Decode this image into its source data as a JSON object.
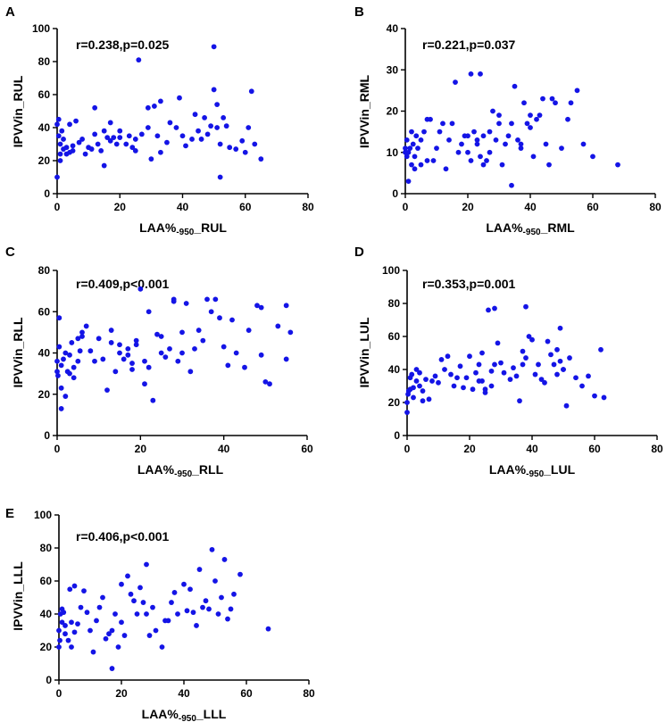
{
  "chart_data": [
    {
      "panel": "A",
      "type": "scatter",
      "xlabel_main": "LAA%",
      "xlabel_sub": "-950",
      "xlabel_suffix": "_RUL",
      "ylabel": "IPVVin_RUL",
      "annotation": "r=0.238,p=0.025",
      "xlim": [
        0,
        80
      ],
      "ylim": [
        0,
        100
      ],
      "xticks": [
        0,
        20,
        40,
        60,
        80
      ],
      "yticks": [
        0,
        20,
        40,
        60,
        80,
        100
      ],
      "x": [
        0,
        0,
        0.5,
        0.5,
        1,
        1,
        1,
        1.5,
        2,
        2,
        3,
        3,
        4,
        4,
        5,
        5,
        6,
        7,
        8,
        9,
        10,
        11,
        12,
        12,
        13,
        14,
        15,
        15,
        16,
        17,
        17,
        18,
        19,
        20,
        20,
        22,
        23,
        24,
        25,
        25,
        26,
        27,
        29,
        29,
        30,
        31,
        32,
        33,
        33,
        35,
        36,
        38,
        39,
        40,
        41,
        43,
        44,
        45,
        46,
        47,
        48,
        49,
        50,
        50,
        51,
        51,
        52,
        52,
        53,
        54,
        55,
        57,
        59,
        60,
        61,
        62,
        63,
        65
      ],
      "y": [
        10,
        42,
        35,
        45,
        20,
        24,
        30,
        38,
        27,
        33,
        24,
        28,
        25,
        42,
        26,
        29,
        44,
        31,
        33,
        24,
        28,
        27,
        36,
        52,
        30,
        26,
        38,
        17,
        34,
        32,
        43,
        34,
        30,
        34,
        38,
        30,
        35,
        28,
        33,
        26,
        81,
        36,
        52,
        40,
        21,
        53,
        35,
        25,
        56,
        31,
        43,
        40,
        58,
        35,
        29,
        33,
        48,
        38,
        33,
        46,
        36,
        41,
        63,
        89,
        40,
        54,
        10,
        30,
        46,
        41,
        28,
        27,
        32,
        25,
        40,
        62,
        30,
        21
      ]
    },
    {
      "panel": "B",
      "type": "scatter",
      "xlabel_main": "LAA%",
      "xlabel_sub": "-950",
      "xlabel_suffix": "_RML",
      "ylabel": "IPVVin_RML",
      "annotation": "r=0.221,p=0.037",
      "xlim": [
        0,
        80
      ],
      "ylim": [
        0,
        40
      ],
      "xticks": [
        0,
        20,
        40,
        60,
        80
      ],
      "yticks": [
        0,
        10,
        20,
        30,
        40
      ],
      "x": [
        0,
        0,
        0.5,
        0.5,
        1,
        1,
        1.5,
        2,
        2,
        2.5,
        3,
        3,
        3.5,
        4,
        5,
        5,
        6,
        7,
        7,
        8,
        9,
        10,
        11,
        12,
        13,
        14,
        15,
        16,
        17,
        18,
        19,
        20,
        20,
        21,
        21,
        22,
        23,
        23,
        24,
        24,
        25,
        25,
        26,
        27,
        27,
        28,
        29,
        30,
        30,
        31,
        32,
        33,
        34,
        34,
        35,
        36,
        37,
        37,
        38,
        39,
        40,
        40,
        41,
        42,
        43,
        44,
        45,
        46,
        47,
        48,
        50,
        52,
        53,
        55,
        57,
        60,
        68
      ],
      "y": [
        10,
        11,
        9,
        13,
        3,
        10,
        11,
        15,
        7,
        12,
        6,
        9,
        14,
        11,
        13,
        7,
        15,
        18,
        8,
        18,
        8,
        11,
        15,
        17,
        6,
        13,
        17,
        27,
        10,
        12,
        14,
        14,
        10,
        29,
        8,
        15,
        12,
        13,
        9,
        29,
        7,
        14,
        8,
        15,
        10,
        20,
        13,
        17,
        19,
        7,
        12,
        14,
        2,
        17,
        26,
        13,
        11,
        12,
        22,
        17,
        16,
        19,
        9,
        18,
        19,
        23,
        12,
        7,
        23,
        22,
        11,
        18,
        22,
        25,
        12,
        9,
        7
      ]
    },
    {
      "panel": "C",
      "type": "scatter",
      "xlabel_main": "LAA%",
      "xlabel_sub": "-950",
      "xlabel_suffix": "_RLL",
      "ylabel": "IPVVin_RLL",
      "annotation": "r=0.409,p<0.001",
      "xlim": [
        0,
        60
      ],
      "ylim": [
        0,
        80
      ],
      "xticks": [
        0,
        20,
        40,
        60
      ],
      "yticks": [
        0,
        20,
        40,
        60,
        80
      ],
      "x": [
        0,
        0,
        0.2,
        0.5,
        0.5,
        1,
        1,
        1,
        1.5,
        2,
        2,
        2.5,
        3,
        3,
        3.5,
        4,
        4,
        5,
        5,
        5.5,
        6,
        6,
        7,
        8,
        9,
        10,
        11,
        12,
        13,
        13,
        14,
        15,
        15,
        16,
        17,
        17,
        18,
        18,
        19,
        19,
        20,
        21,
        21,
        22,
        22,
        23,
        24,
        25,
        25,
        26,
        27,
        28,
        28,
        29,
        30,
        30,
        31,
        32,
        33,
        34,
        35,
        36,
        37,
        38,
        39,
        40,
        41,
        42,
        43,
        45,
        46,
        48,
        49,
        49,
        50,
        51,
        53,
        55,
        55,
        56
      ],
      "y": [
        31,
        36,
        29,
        43,
        57,
        13,
        23,
        34,
        37,
        40,
        19,
        31,
        30,
        39,
        45,
        28,
        33,
        36,
        47,
        41,
        48,
        50,
        53,
        41,
        36,
        47,
        37,
        22,
        45,
        51,
        31,
        44,
        40,
        37,
        39,
        42,
        32,
        35,
        44,
        46,
        71,
        36,
        25,
        33,
        60,
        17,
        49,
        48,
        40,
        38,
        42,
        65,
        66,
        36,
        50,
        40,
        64,
        31,
        42,
        51,
        46,
        66,
        60,
        66,
        57,
        43,
        34,
        56,
        40,
        33,
        51,
        63,
        62,
        39,
        26,
        25,
        53,
        37,
        63,
        50
      ]
    },
    {
      "panel": "D",
      "type": "scatter",
      "xlabel_main": "LAA%",
      "xlabel_sub": "-950",
      "xlabel_suffix": "_LUL",
      "ylabel": "IPVVin_LUL",
      "annotation": "r=0.353,p=0.001",
      "xlim": [
        0,
        80
      ],
      "ylim": [
        0,
        100
      ],
      "xticks": [
        0,
        20,
        40,
        60,
        80
      ],
      "yticks": [
        0,
        20,
        40,
        60,
        80,
        100
      ],
      "x": [
        0,
        0,
        0.3,
        0.5,
        1,
        1,
        1.5,
        2,
        2,
        3,
        3,
        4,
        4,
        5,
        5,
        6,
        7,
        8,
        9,
        10,
        11,
        12,
        13,
        14,
        15,
        16,
        17,
        18,
        19,
        20,
        21,
        22,
        23,
        23,
        24,
        24,
        25,
        25,
        26,
        27,
        27,
        28,
        28,
        29,
        30,
        31,
        33,
        34,
        35,
        36,
        37,
        37,
        38,
        38,
        39,
        40,
        41,
        42,
        43,
        44,
        45,
        46,
        47,
        48,
        48,
        49,
        49,
        50,
        50,
        51,
        52,
        54,
        56,
        58,
        60,
        62,
        63
      ],
      "y": [
        14,
        20,
        25,
        27,
        35,
        28,
        37,
        23,
        29,
        33,
        40,
        38,
        30,
        21,
        27,
        34,
        22,
        33,
        36,
        32,
        46,
        40,
        48,
        37,
        30,
        35,
        42,
        29,
        35,
        48,
        28,
        38,
        33,
        43,
        33,
        50,
        26,
        28,
        76,
        39,
        30,
        43,
        77,
        56,
        44,
        38,
        34,
        41,
        36,
        21,
        43,
        51,
        47,
        78,
        60,
        58,
        37,
        43,
        34,
        32,
        57,
        49,
        43,
        37,
        52,
        45,
        65,
        40,
        40,
        18,
        47,
        35,
        30,
        36,
        24,
        52,
        23
      ]
    },
    {
      "panel": "E",
      "type": "scatter",
      "xlabel_main": "LAA%",
      "xlabel_sub": "-950",
      "xlabel_suffix": "_LLL",
      "ylabel": "IPVVin_LLL",
      "annotation": "r=0.406,p<0.001",
      "xlim": [
        0,
        80
      ],
      "ylim": [
        0,
        100
      ],
      "xticks": [
        0,
        20,
        40,
        60,
        80
      ],
      "yticks": [
        0,
        20,
        40,
        60,
        80,
        100
      ],
      "x": [
        0,
        0,
        0.3,
        0.5,
        1,
        1,
        1.5,
        2,
        2,
        3,
        3.5,
        4,
        4,
        5,
        5,
        6,
        7,
        8,
        9,
        10,
        11,
        12,
        13,
        14,
        15,
        16,
        17,
        17,
        18,
        19,
        20,
        20,
        21,
        22,
        23,
        24,
        25,
        26,
        27,
        28,
        28,
        29,
        30,
        31,
        33,
        34,
        35,
        36,
        37,
        38,
        40,
        41,
        42,
        43,
        44,
        45,
        46,
        47,
        48,
        49,
        50,
        51,
        52,
        53,
        54,
        55,
        56,
        58,
        67
      ],
      "y": [
        30,
        20,
        24,
        40,
        35,
        43,
        41,
        33,
        28,
        24,
        55,
        20,
        35,
        29,
        57,
        34,
        44,
        54,
        41,
        30,
        17,
        36,
        44,
        50,
        25,
        28,
        30,
        7,
        40,
        20,
        35,
        58,
        27,
        63,
        52,
        48,
        40,
        56,
        47,
        40,
        70,
        27,
        44,
        30,
        20,
        36,
        36,
        47,
        53,
        40,
        58,
        42,
        55,
        41,
        33,
        67,
        44,
        48,
        43,
        79,
        60,
        40,
        50,
        73,
        37,
        43,
        52,
        64,
        31
      ]
    }
  ]
}
